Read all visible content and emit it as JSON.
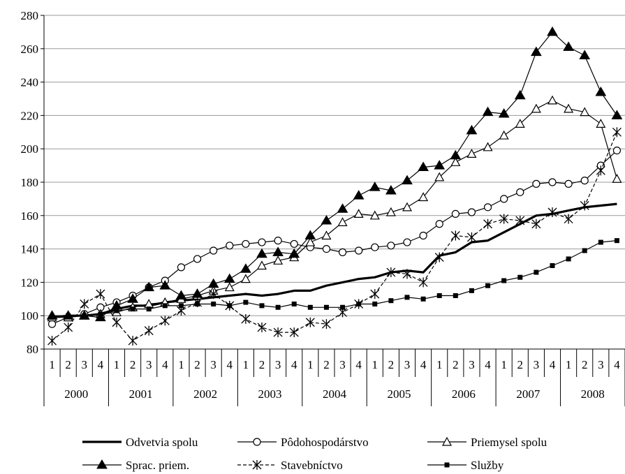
{
  "chart_data": {
    "type": "line",
    "title": "",
    "xlabel": "",
    "ylabel": "",
    "ylim": [
      80,
      280
    ],
    "yticks": [
      80,
      100,
      120,
      140,
      160,
      180,
      200,
      220,
      240,
      260,
      280
    ],
    "grid": "horizontal",
    "legend_position": "bottom",
    "quarter_labels": [
      "1",
      "2",
      "3",
      "4",
      "1",
      "2",
      "3",
      "4",
      "1",
      "2",
      "3",
      "4",
      "1",
      "2",
      "3",
      "4",
      "1",
      "2",
      "3",
      "4",
      "1",
      "2",
      "3",
      "4",
      "1",
      "2",
      "3",
      "4",
      "1",
      "2",
      "3",
      "4",
      "1",
      "2",
      "3",
      "4"
    ],
    "years": [
      "2000",
      "2001",
      "2002",
      "2003",
      "2004",
      "2005",
      "2006",
      "2007",
      "2008"
    ],
    "series": [
      {
        "name": "Odvetvia spolu",
        "marker": "none",
        "color": "#000000",
        "values": [
          99,
          100,
          100,
          101,
          104,
          106,
          106,
          108,
          109,
          110,
          111,
          112,
          113,
          112,
          113,
          115,
          115,
          118,
          120,
          122,
          123,
          126,
          127,
          126,
          136,
          138,
          144,
          145,
          150,
          155,
          160,
          161,
          163,
          165,
          166,
          167
        ]
      },
      {
        "name": "Pôdohospodárstvo",
        "marker": "circle",
        "color": "#000000",
        "values": [
          95,
          99,
          101,
          105,
          108,
          112,
          117,
          121,
          129,
          134,
          139,
          142,
          143,
          144,
          145,
          143,
          141,
          140,
          138,
          139,
          141,
          142,
          144,
          148,
          155,
          161,
          162,
          165,
          170,
          174,
          179,
          180,
          179,
          181,
          190,
          199
        ]
      },
      {
        "name": "Priemysel spolu",
        "marker": "triangle-open",
        "color": "#000000",
        "values": [
          99,
          99,
          100,
          101,
          102,
          105,
          107,
          108,
          110,
          112,
          115,
          117,
          122,
          130,
          133,
          135,
          144,
          148,
          156,
          161,
          160,
          162,
          165,
          171,
          183,
          192,
          197,
          201,
          208,
          215,
          224,
          229,
          224,
          222,
          215,
          182
        ]
      },
      {
        "name": "Sprac. priem.",
        "marker": "triangle-filled",
        "color": "#000000",
        "values": [
          100,
          100,
          100,
          99,
          106,
          110,
          117,
          118,
          112,
          113,
          119,
          122,
          128,
          137,
          138,
          137,
          148,
          157,
          164,
          172,
          177,
          175,
          181,
          189,
          190,
          196,
          211,
          222,
          221,
          232,
          258,
          270,
          261,
          256,
          234,
          220
        ]
      },
      {
        "name": "Stavebníctvo",
        "marker": "star",
        "color": "#000000",
        "values": [
          85,
          93,
          107,
          113,
          96,
          85,
          91,
          97,
          103,
          108,
          113,
          106,
          98,
          93,
          90,
          90,
          96,
          95,
          102,
          107,
          113,
          126,
          125,
          120,
          135,
          148,
          147,
          155,
          158,
          157,
          155,
          162,
          158,
          166,
          187,
          210
        ]
      },
      {
        "name": "Služby",
        "marker": "square",
        "color": "#000000",
        "values": [
          99,
          100,
          100,
          101,
          103,
          104,
          104,
          106,
          106,
          107,
          107,
          106,
          108,
          106,
          105,
          107,
          105,
          105,
          105,
          107,
          107,
          109,
          111,
          110,
          112,
          112,
          115,
          118,
          121,
          123,
          126,
          130,
          134,
          139,
          144,
          145
        ]
      }
    ]
  }
}
